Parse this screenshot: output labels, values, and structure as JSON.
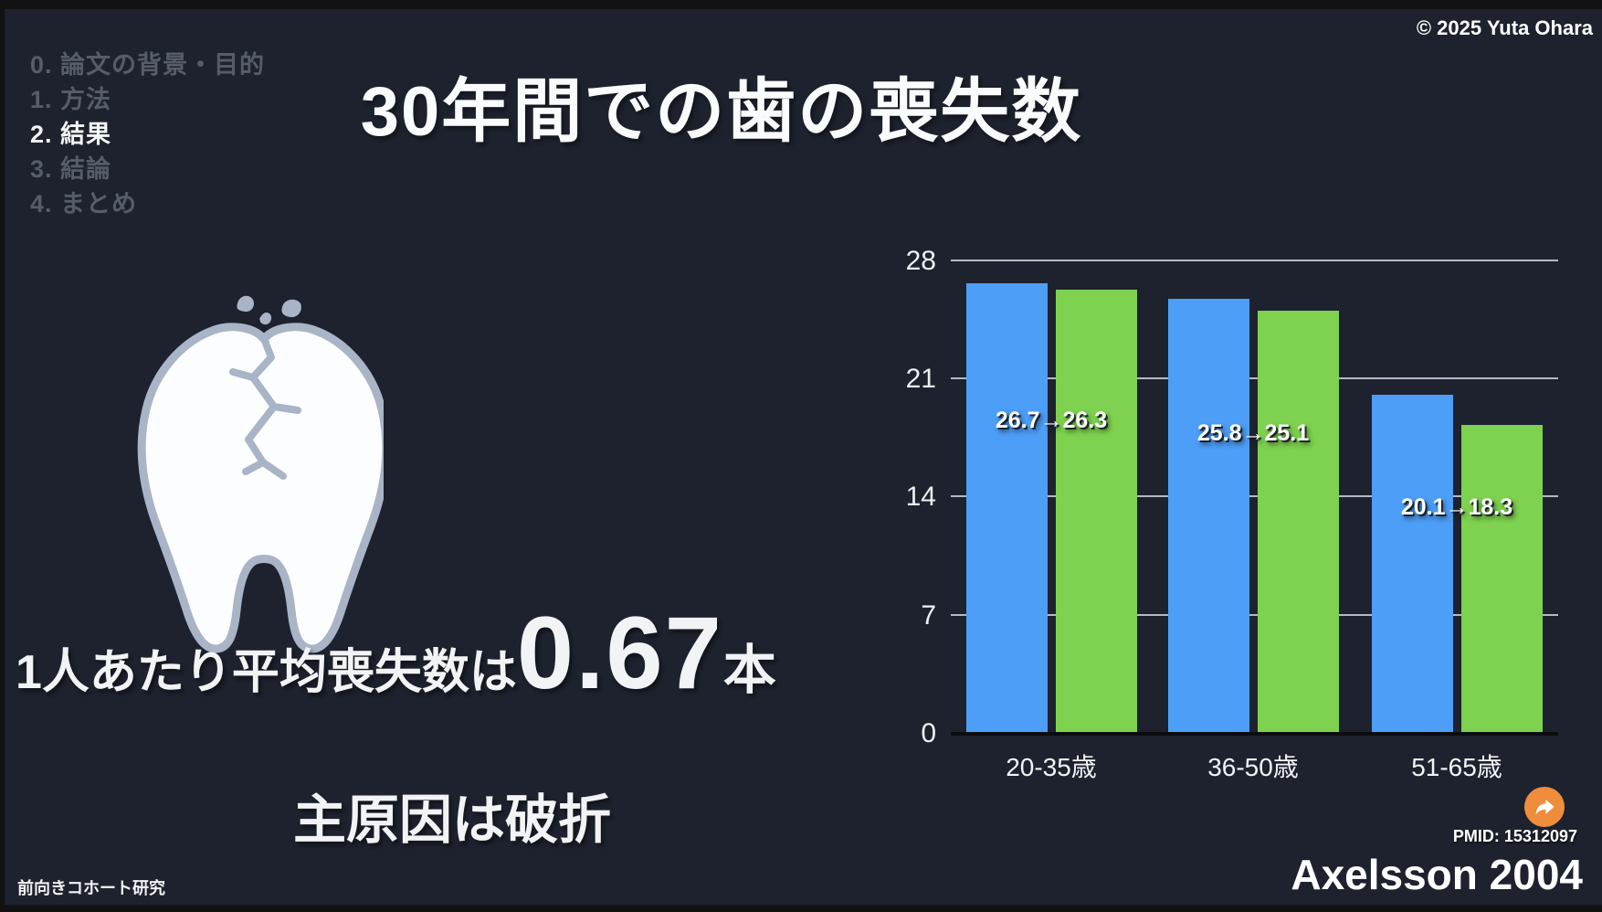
{
  "header": {
    "title": "30年間での歯の喪失数",
    "copyright": "© 2025 Yuta Ohara"
  },
  "agenda": {
    "items": [
      {
        "label": "0. 論文の背景・目的",
        "active": false
      },
      {
        "label": "1. 方法",
        "active": false
      },
      {
        "label": "2. 結果",
        "active": true
      },
      {
        "label": "3. 結論",
        "active": false
      },
      {
        "label": "4. まとめ",
        "active": false
      }
    ]
  },
  "findings": {
    "stat_prefix": "1人あたり平均喪失数は",
    "stat_value": "0.67",
    "stat_unit": "本",
    "cause": "主原因は破折",
    "study_type": "前向きコホート研究"
  },
  "chart_data": {
    "type": "bar",
    "categories": [
      "20-35歳",
      "36-50歳",
      "51-65歳"
    ],
    "series": [
      {
        "name": "baseline-blue",
        "color": "#4d9ef7",
        "values": [
          26.7,
          25.8,
          20.1
        ]
      },
      {
        "name": "after-30y-green",
        "color": "#7ed24f",
        "values": [
          26.3,
          25.1,
          18.3
        ]
      }
    ],
    "value_labels": [
      "26.7→26.3",
      "25.8→25.1",
      "20.1→18.3"
    ],
    "yticks": [
      0,
      7,
      14,
      21,
      28
    ],
    "ylim": [
      0,
      28
    ],
    "grid": true,
    "legend": "none"
  },
  "footer": {
    "pmid": "PMID: 15312097",
    "citation": "Axelsson 2004"
  },
  "colors": {
    "background": "#1d222e",
    "bar_blue": "#4d9ef7",
    "bar_green": "#7ed24f",
    "accent_orange": "#ee8d3c"
  }
}
